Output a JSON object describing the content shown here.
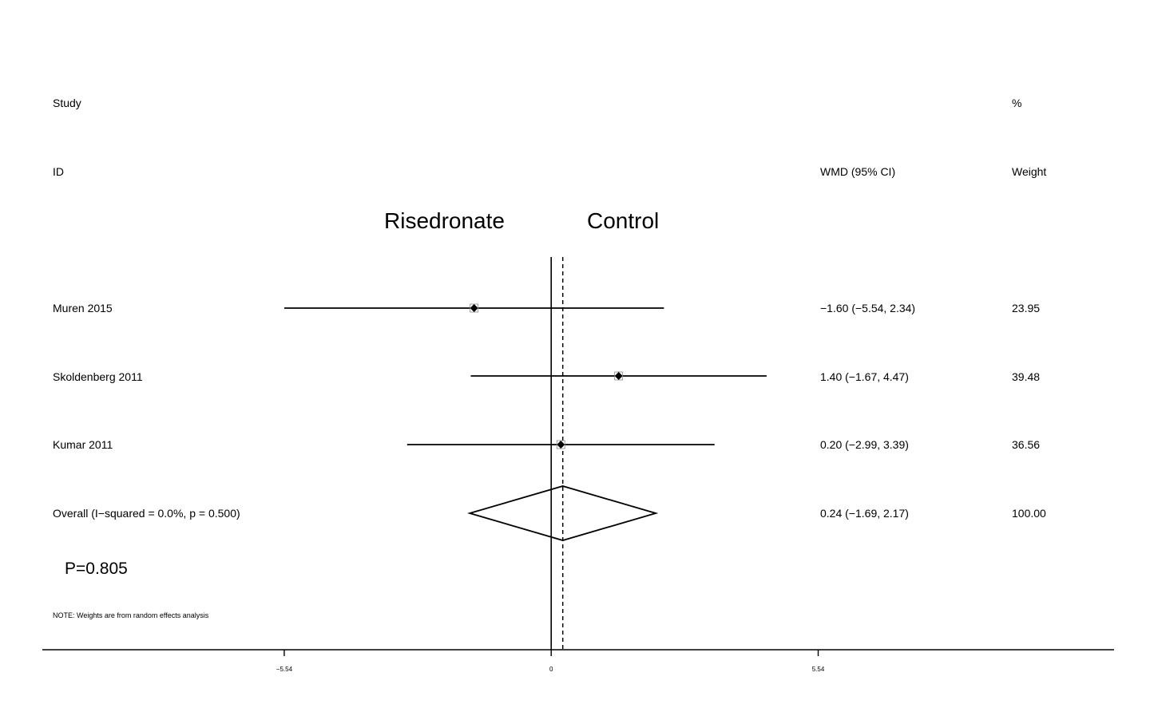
{
  "chart_data": {
    "type": "forest",
    "headers": {
      "study_line1": "Study",
      "study_line2": "ID",
      "effect": "WMD (95% CI)",
      "weight_line1": "%",
      "weight_line2": "Weight"
    },
    "favours": {
      "left": "Risedronate",
      "right": "Control"
    },
    "studies": [
      {
        "id": "Muren 2015",
        "estimate": -1.6,
        "lower": -5.54,
        "upper": 2.34,
        "ci_text": "−1.60 (−5.54, 2.34)",
        "weight": "23.95"
      },
      {
        "id": "Skoldenberg 2011",
        "estimate": 1.4,
        "lower": -1.67,
        "upper": 4.47,
        "ci_text": "1.40 (−1.67, 4.47)",
        "weight": "39.48"
      },
      {
        "id": "Kumar 2011",
        "estimate": 0.2,
        "lower": -2.99,
        "upper": 3.39,
        "ci_text": "0.20 (−2.99, 3.39)",
        "weight": "36.56"
      }
    ],
    "overall": {
      "label": "Overall  (I−squared = 0.0%, p = 0.500)",
      "estimate": 0.24,
      "lower": -1.69,
      "upper": 2.17,
      "ci_text": "0.24 (−1.69, 2.17)",
      "weight": "100.00"
    },
    "p_value": "P=0.805",
    "note": "NOTE: Weights are from random effects analysis",
    "x_ticks": [
      {
        "value": -5.54,
        "label": "−5.54"
      },
      {
        "value": 0,
        "label": "0"
      },
      {
        "value": 5.54,
        "label": "5.54"
      }
    ],
    "null_line": 0,
    "x_range": [
      -10.56,
      11.68
    ]
  }
}
